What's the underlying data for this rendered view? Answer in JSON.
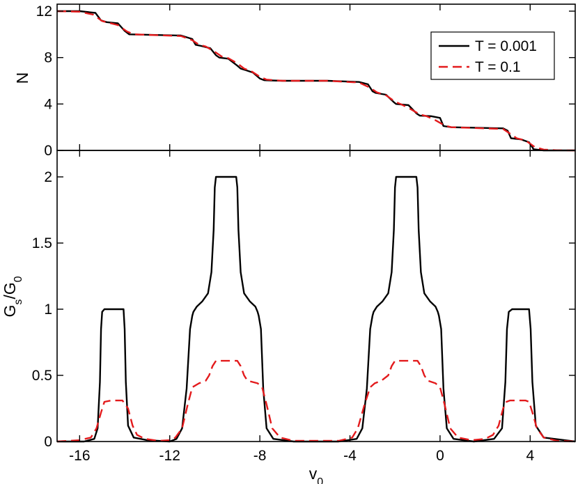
{
  "chart_data": [
    {
      "type": "line",
      "ylabel": "N",
      "xlim": [
        -17,
        6
      ],
      "ylim": [
        0,
        12.6
      ],
      "x_ticks": [
        -16,
        -12,
        -8,
        -4,
        0,
        4
      ],
      "y_ticks": [
        0,
        4,
        8,
        12
      ],
      "y_tick_labels": [
        "0",
        "4",
        "8",
        "12"
      ],
      "legend": {
        "placement": "top-right",
        "entries": [
          "T = 0.001",
          "T = 0.1"
        ]
      },
      "series": [
        {
          "name": "T = 0.001",
          "color": "#000000",
          "dash": "solid",
          "x": [
            -17,
            -16,
            -15.3,
            -15.05,
            -14.8,
            -14.3,
            -14.0,
            -13.8,
            -11.5,
            -11.0,
            -10.85,
            -10.6,
            -10.2,
            -9.95,
            -9.8,
            -9.4,
            -9.0,
            -8.85,
            -8.6,
            -8.3,
            -8.0,
            -7.8,
            -7.0,
            -5.0,
            -3.6,
            -3.2,
            -3.0,
            -2.85,
            -2.4,
            -2.05,
            -1.95,
            -1.4,
            -1.05,
            -0.9,
            -0.4,
            0.0,
            0.15,
            0.5,
            2.8,
            3.0,
            3.15,
            3.6,
            3.95,
            4.15,
            4.6,
            6
          ],
          "y": [
            12,
            12,
            11.85,
            11.2,
            11.05,
            10.95,
            10.3,
            10.0,
            9.9,
            9.6,
            9.1,
            9.0,
            8.8,
            8.2,
            8.0,
            7.9,
            7.3,
            7.05,
            6.9,
            6.7,
            6.2,
            6.05,
            6.0,
            6.0,
            5.9,
            5.7,
            5.1,
            4.95,
            4.8,
            4.15,
            4.0,
            3.9,
            3.2,
            3.0,
            2.95,
            2.8,
            2.1,
            2.0,
            1.9,
            1.7,
            1.05,
            0.95,
            0.7,
            0.1,
            0.0,
            0.0
          ]
        },
        {
          "name": "T = 0.1",
          "color": "#e31a1c",
          "dash": "dashed",
          "x": [
            -17,
            -16,
            -15.4,
            -15.0,
            -14.7,
            -14.3,
            -13.9,
            -13.6,
            -11.5,
            -11.0,
            -10.7,
            -10.4,
            -10.0,
            -9.7,
            -9.4,
            -9.0,
            -8.7,
            -8.4,
            -8.0,
            -7.7,
            -7.0,
            -5.0,
            -3.6,
            -3.1,
            -2.8,
            -2.4,
            -2.0,
            -1.7,
            -1.3,
            -0.9,
            -0.6,
            -0.2,
            0.2,
            0.5,
            2.8,
            3.1,
            3.4,
            3.8,
            4.2,
            4.6,
            5.2,
            6
          ],
          "y": [
            12,
            11.95,
            11.7,
            11.15,
            11.0,
            10.8,
            10.25,
            10.0,
            9.85,
            9.5,
            9.1,
            8.95,
            8.5,
            8.1,
            7.95,
            7.5,
            7.05,
            6.85,
            6.35,
            6.1,
            6.0,
            6.0,
            5.85,
            5.4,
            5.0,
            4.75,
            4.2,
            3.95,
            3.55,
            3.1,
            2.95,
            2.6,
            2.15,
            2.0,
            1.85,
            1.45,
            1.05,
            0.85,
            0.3,
            0.07,
            0.01,
            0.0
          ]
        }
      ]
    },
    {
      "type": "line",
      "xlabel": "v",
      "xlabel_sub": "0",
      "ylabel": "G",
      "ylabel_sub1": "s",
      "ylabel_mid": "/G",
      "ylabel_sub2": "0",
      "xlim": [
        -17,
        6
      ],
      "ylim": [
        0,
        2.2
      ],
      "x_ticks": [
        -16,
        -12,
        -8,
        -4,
        0,
        4
      ],
      "x_tick_labels": [
        "-16",
        "-12",
        "-8",
        "-4",
        "0",
        "4"
      ],
      "y_ticks": [
        0,
        0.5,
        1,
        1.5,
        2
      ],
      "y_tick_labels": [
        "0",
        "0.5",
        "1",
        "1.5",
        "2"
      ],
      "series": [
        {
          "name": "T = 0.001",
          "color": "#000000",
          "dash": "solid",
          "x": [
            -17,
            -15.8,
            -15.35,
            -15.2,
            -15.1,
            -15.05,
            -15.0,
            -14.9,
            -14.2,
            -14.05,
            -14.0,
            -13.95,
            -13.85,
            -13.6,
            -13.0,
            -12.0,
            -11.7,
            -11.45,
            -11.25,
            -11.1,
            -11.0,
            -10.95,
            -10.8,
            -10.55,
            -10.3,
            -10.15,
            -10.05,
            -10.0,
            -9.95,
            -9.9,
            -9.05,
            -9.0,
            -8.95,
            -8.85,
            -8.7,
            -8.45,
            -8.2,
            -8.1,
            -8.05,
            -7.95,
            -7.85,
            -7.7,
            -7.4,
            -6.5,
            -4.5,
            -3.7,
            -3.45,
            -3.25,
            -3.1,
            -3.0,
            -2.95,
            -2.8,
            -2.55,
            -2.3,
            -2.15,
            -2.05,
            -2.0,
            -1.95,
            -1.9,
            -1.05,
            -1.0,
            -0.95,
            -0.85,
            -0.7,
            -0.45,
            -0.2,
            -0.1,
            -0.05,
            0.05,
            0.15,
            0.3,
            0.6,
            1.5,
            2.4,
            2.75,
            2.9,
            2.97,
            3.05,
            3.2,
            3.85,
            3.95,
            4.02,
            4.1,
            4.25,
            4.6,
            6
          ],
          "y": [
            0.0,
            0.0,
            0.02,
            0.1,
            0.45,
            0.85,
            0.98,
            1.0,
            1.0,
            1.0,
            0.85,
            0.45,
            0.12,
            0.03,
            0.01,
            0.0,
            0.02,
            0.1,
            0.4,
            0.85,
            0.95,
            0.98,
            1.02,
            1.06,
            1.12,
            1.28,
            1.6,
            1.92,
            2.0,
            2.0,
            2.0,
            1.92,
            1.6,
            1.28,
            1.12,
            1.06,
            1.02,
            0.98,
            0.95,
            0.85,
            0.4,
            0.1,
            0.02,
            0.0,
            0.0,
            0.02,
            0.1,
            0.4,
            0.85,
            0.95,
            0.98,
            1.02,
            1.06,
            1.12,
            1.28,
            1.6,
            1.92,
            2.0,
            2.0,
            2.0,
            1.92,
            1.6,
            1.28,
            1.12,
            1.06,
            1.02,
            0.98,
            0.95,
            0.85,
            0.4,
            0.1,
            0.02,
            0.0,
            0.02,
            0.1,
            0.45,
            0.85,
            0.98,
            1.0,
            1.0,
            1.0,
            0.85,
            0.45,
            0.12,
            0.03,
            0.0
          ]
        },
        {
          "name": "T = 0.1",
          "color": "#e31a1c",
          "dash": "dashed",
          "x": [
            -17,
            -16.0,
            -15.5,
            -15.25,
            -15.05,
            -14.9,
            -14.6,
            -14.1,
            -13.85,
            -13.65,
            -13.45,
            -13.1,
            -12.5,
            -12.0,
            -11.75,
            -11.45,
            -11.2,
            -11.0,
            -10.7,
            -10.4,
            -10.25,
            -10.1,
            -9.95,
            -9.0,
            -8.85,
            -8.7,
            -8.55,
            -8.1,
            -7.9,
            -7.7,
            -7.45,
            -7.1,
            -6.5,
            -4.5,
            -3.9,
            -3.65,
            -3.35,
            -3.1,
            -2.9,
            -2.6,
            -2.3,
            -2.15,
            -2.0,
            -1.85,
            -1.0,
            -0.85,
            -0.7,
            -0.55,
            -0.2,
            0.0,
            0.2,
            0.45,
            0.8,
            1.4,
            2.0,
            2.35,
            2.6,
            2.8,
            2.95,
            3.1,
            3.8,
            3.95,
            4.1,
            4.3,
            4.6,
            5.2,
            6
          ],
          "y": [
            0.0,
            0.01,
            0.03,
            0.1,
            0.22,
            0.3,
            0.31,
            0.31,
            0.25,
            0.12,
            0.05,
            0.02,
            0.005,
            0.01,
            0.03,
            0.1,
            0.28,
            0.41,
            0.44,
            0.46,
            0.5,
            0.57,
            0.61,
            0.61,
            0.57,
            0.5,
            0.46,
            0.44,
            0.41,
            0.28,
            0.1,
            0.03,
            0.005,
            0.005,
            0.03,
            0.1,
            0.28,
            0.41,
            0.44,
            0.46,
            0.5,
            0.57,
            0.61,
            0.61,
            0.61,
            0.57,
            0.5,
            0.46,
            0.44,
            0.41,
            0.28,
            0.1,
            0.03,
            0.01,
            0.02,
            0.05,
            0.12,
            0.25,
            0.3,
            0.31,
            0.31,
            0.3,
            0.22,
            0.1,
            0.03,
            0.005,
            0.0
          ]
        }
      ]
    }
  ]
}
